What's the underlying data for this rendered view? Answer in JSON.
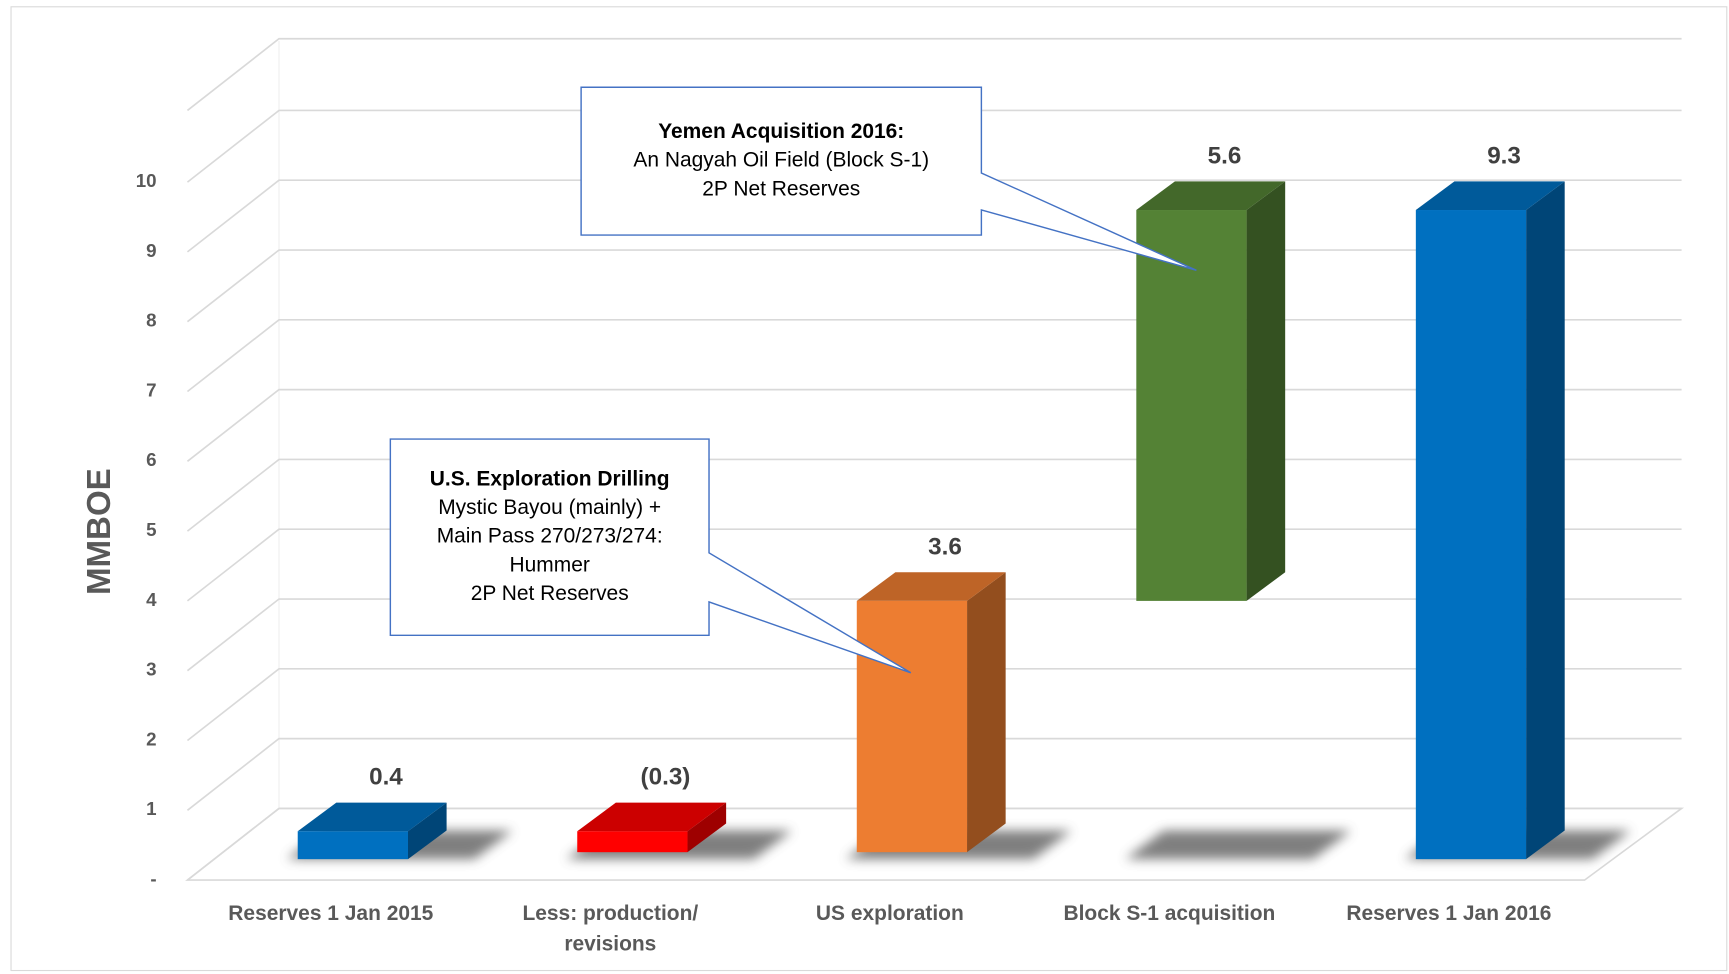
{
  "chart_data": {
    "type": "waterfall",
    "y_label": "MMBOE",
    "categories": [
      "Reserves 1 Jan 2015",
      "Less: production/ revisions",
      "US exploration",
      "Block S-1 acquisition",
      "Reserves 1 Jan 2016"
    ],
    "values": [
      0.4,
      -0.3,
      3.6,
      5.6,
      9.3
    ],
    "value_labels": [
      "0.4",
      "(0.3)",
      "3.6",
      "5.6",
      "9.3"
    ],
    "totals": [
      true,
      false,
      false,
      false,
      true
    ],
    "colors": [
      "#0070c0",
      "#ff0000",
      "#ed7d31",
      "#548235",
      "#0070c0"
    ],
    "negative_label_color": "#e00000",
    "ylim": [
      0,
      10
    ],
    "yticks": [
      {
        "value": 0,
        "label": "-"
      },
      1,
      2,
      3,
      4,
      5,
      6,
      7,
      8,
      9,
      10
    ],
    "grid": true,
    "annotations": [
      {
        "title": "Yemen Acquisition  2016:",
        "lines": [
          "An Nagyah Oil Field (Block S-1)",
          "2P Net Reserves"
        ],
        "target": 3
      },
      {
        "title": "U.S. Exploration Drilling",
        "lines": [
          "Mystic Bayou (mainly) +",
          "Main Pass 270/273/274:",
          "Hummer",
          "2P Net Reserves"
        ],
        "target": 2
      }
    ]
  }
}
